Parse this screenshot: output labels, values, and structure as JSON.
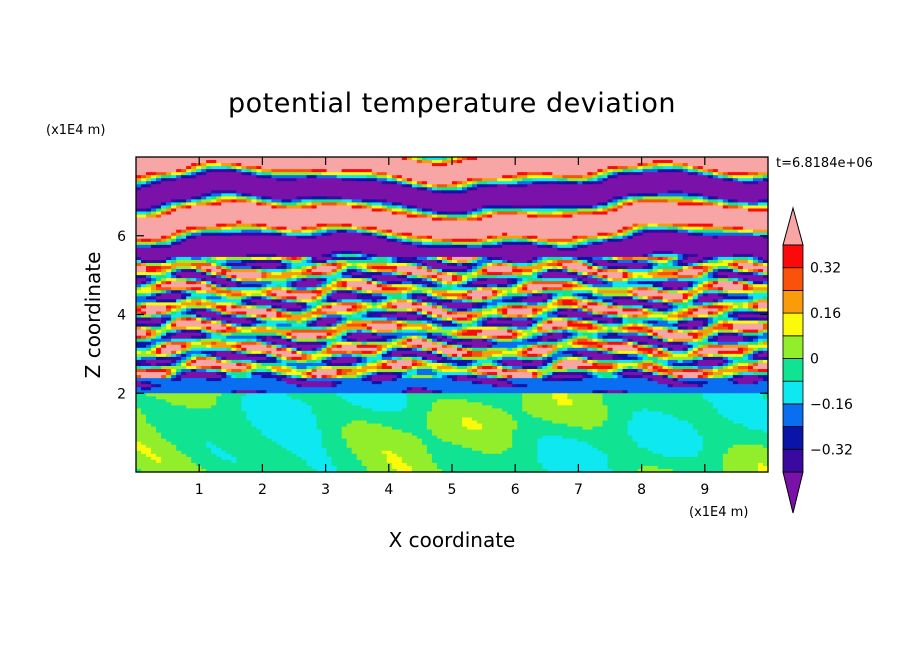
{
  "chart_data": {
    "type": "heatmap",
    "title": "potential temperature deviation",
    "xlabel": "X coordinate",
    "ylabel": "Z coordinate",
    "x_unit": "(x1E4 m)",
    "y_unit": "(x1E4 m)",
    "time_label": "t=6.8184e+06",
    "xlim": [
      0,
      10
    ],
    "ylim": [
      0,
      8
    ],
    "x_ticks": [
      "1",
      "2",
      "3",
      "4",
      "5",
      "6",
      "7",
      "8",
      "9"
    ],
    "y_ticks": [
      "2",
      "4",
      "6"
    ],
    "colorbar": {
      "levels": [
        -0.4,
        -0.32,
        -0.24,
        -0.16,
        -0.08,
        0,
        0.08,
        0.16,
        0.24,
        0.32,
        0.4
      ],
      "labels": [
        "0.32",
        "0.16",
        "0",
        "−0.16",
        "−0.32"
      ],
      "label_values": [
        0.32,
        0.16,
        0,
        -0.16,
        -0.32
      ],
      "colors": [
        "#7a12aa",
        "#3a0aa0",
        "#0a14a8",
        "#0a6ef0",
        "#0ee8f0",
        "#10e492",
        "#92ee2a",
        "#fafa0a",
        "#fa9c0a",
        "#fa520a",
        "#fa0a0a",
        "#f7a5a5"
      ],
      "extend": "both"
    },
    "layers": [
      {
        "z_range": [
          0,
          2
        ],
        "pattern": "mostly slightly negative (green) with slightly positive patches"
      },
      {
        "z_range": [
          2,
          5.5
        ],
        "pattern": "strong banded oscillations spanning full colour range"
      },
      {
        "z_range": [
          5.5,
          8
        ],
        "pattern": "saturated bands alternating above 0.4 and below -0.4"
      }
    ]
  }
}
